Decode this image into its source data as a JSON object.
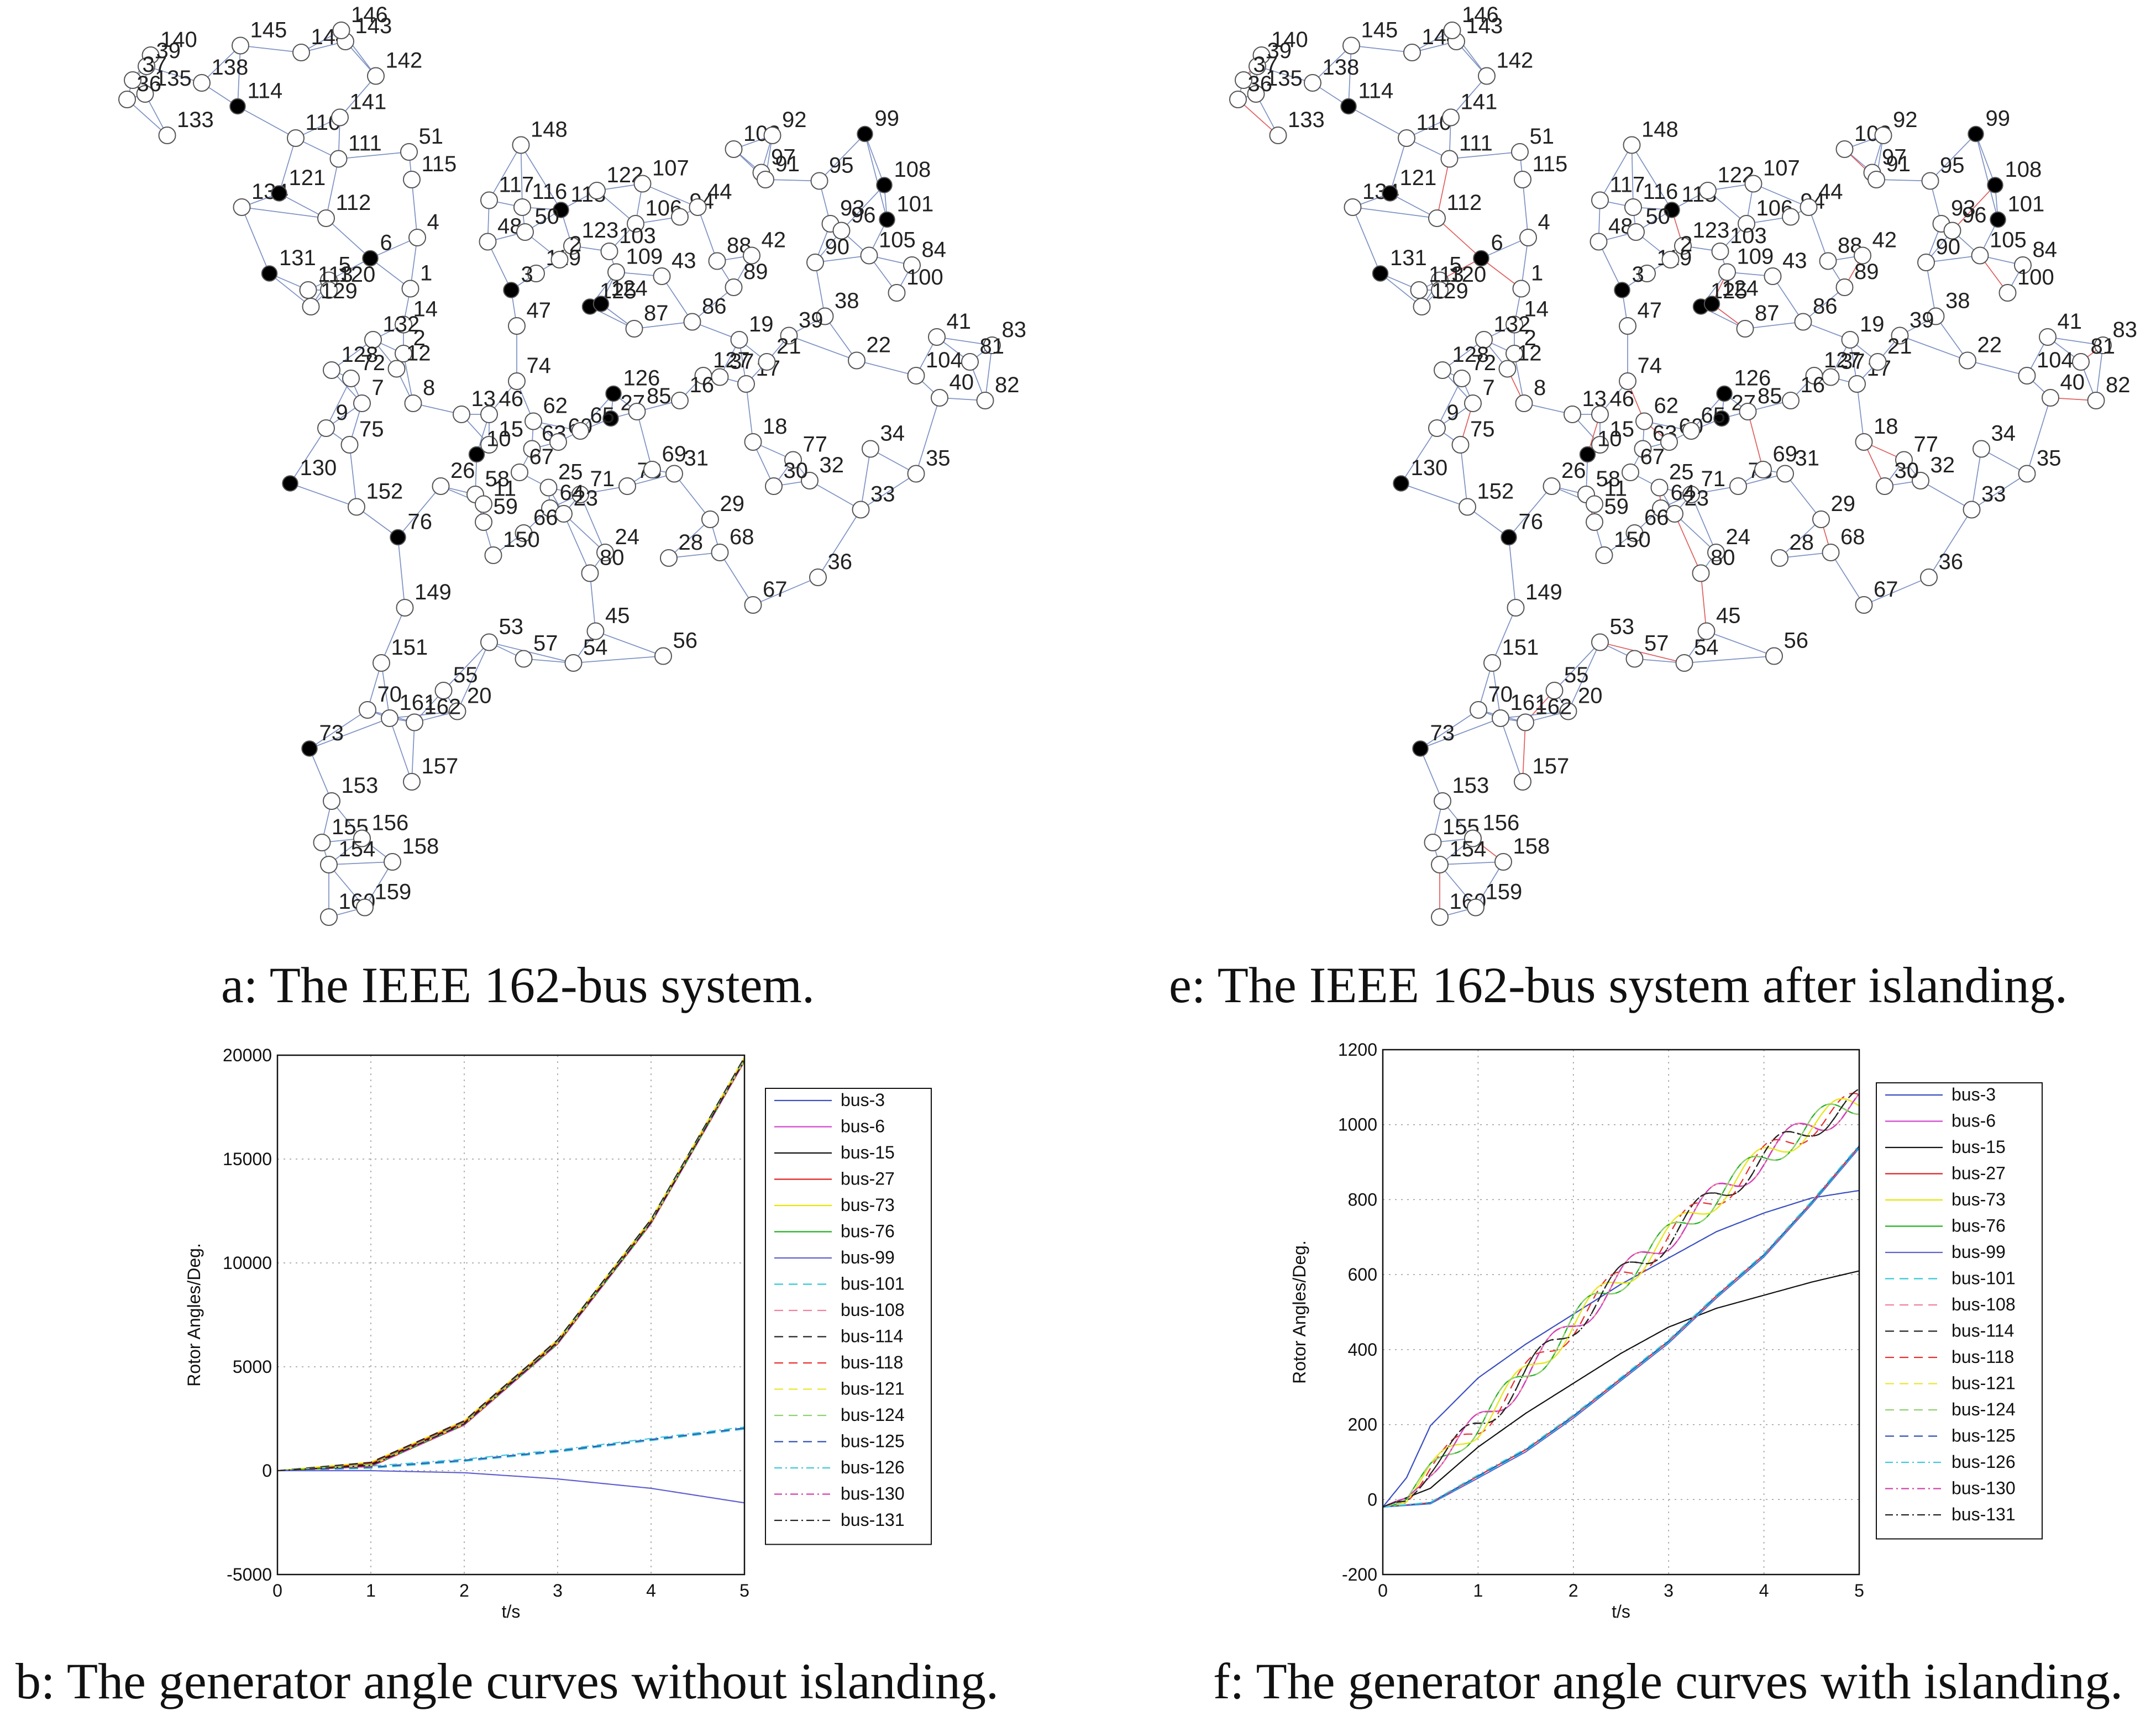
{
  "captions": {
    "a": "a: The IEEE 162-bus system.",
    "e": "e: The IEEE 162-bus system after islanding.",
    "b": "b: The generator angle curves without islanding.",
    "f": "f: The generator angle curves with islanding."
  },
  "network": {
    "nodes": [
      [
        "140",
        109,
        40
      ],
      [
        "39",
        106,
        48
      ],
      [
        "37",
        96,
        58
      ],
      [
        "135",
        105,
        68
      ],
      [
        "36",
        92,
        72
      ],
      [
        "138",
        146,
        60
      ],
      [
        "145",
        174,
        33
      ],
      [
        "144",
        218,
        38
      ],
      [
        "143",
        250,
        30
      ],
      [
        "146",
        247,
        22
      ],
      [
        "142",
        272,
        55
      ],
      [
        "114",
        172,
        77
      ],
      [
        "133",
        121,
        98
      ],
      [
        "110",
        214,
        100
      ],
      [
        "141",
        246,
        85
      ],
      [
        "111",
        245,
        115
      ],
      [
        "51",
        296,
        110
      ],
      [
        "148",
        377,
        105
      ],
      [
        "115",
        298,
        130
      ],
      [
        "134",
        175,
        150
      ],
      [
        "121",
        202,
        140
      ],
      [
        "112",
        236,
        158
      ],
      [
        "117",
        354,
        145
      ],
      [
        "116",
        378,
        150
      ],
      [
        "118",
        406,
        152
      ],
      [
        "122",
        432,
        138
      ],
      [
        "107",
        465,
        133
      ],
      [
        "102",
        531,
        108
      ],
      [
        "92",
        559,
        98
      ],
      [
        "99",
        626,
        97
      ],
      [
        "97",
        551,
        125
      ],
      [
        "91",
        554,
        130
      ],
      [
        "95",
        593,
        131
      ],
      [
        "108",
        640,
        134
      ],
      [
        "101",
        642,
        159
      ],
      [
        "4",
        302,
        172
      ],
      [
        "48",
        353,
        175
      ],
      [
        "50",
        380,
        168
      ],
      [
        "123",
        414,
        178
      ],
      [
        "106",
        460,
        162
      ],
      [
        "94",
        492,
        157
      ],
      [
        "44",
        505,
        150
      ],
      [
        "93",
        601,
        162
      ],
      [
        "96",
        609,
        167
      ],
      [
        "84",
        660,
        192
      ],
      [
        "6",
        268,
        187
      ],
      [
        "131",
        195,
        198
      ],
      [
        "1",
        297,
        209
      ],
      [
        "119",
        388,
        198
      ],
      [
        "2",
        405,
        188
      ],
      [
        "103",
        441,
        182
      ],
      [
        "109",
        446,
        197
      ],
      [
        "43",
        479,
        200
      ],
      [
        "88",
        519,
        189
      ],
      [
        "42",
        544,
        185
      ],
      [
        "90",
        590,
        190
      ],
      [
        "105",
        629,
        185
      ],
      [
        "5",
        238,
        203
      ],
      [
        "113",
        223,
        210
      ],
      [
        "120",
        238,
        210
      ],
      [
        "129",
        225,
        222
      ],
      [
        "3",
        370,
        210
      ],
      [
        "125",
        427,
        222
      ],
      [
        "124",
        435,
        220
      ],
      [
        "89",
        531,
        208
      ],
      [
        "38",
        597,
        229
      ],
      [
        "100",
        649,
        212
      ],
      [
        "14",
        292,
        235
      ],
      [
        "47",
        374,
        236
      ],
      [
        "87",
        459,
        238
      ],
      [
        "86",
        501,
        233
      ],
      [
        "19",
        535,
        246
      ],
      [
        "39",
        571,
        243
      ],
      [
        "22",
        620,
        261
      ],
      [
        "41",
        678,
        244
      ],
      [
        "83",
        718,
        250
      ],
      [
        "104",
        663,
        272
      ],
      [
        "81",
        702,
        262
      ],
      [
        "82",
        713,
        290
      ],
      [
        "132",
        270,
        246
      ],
      [
        "2",
        292,
        256
      ],
      [
        "12",
        287,
        267
      ],
      [
        "72",
        254,
        274
      ],
      [
        "128",
        240,
        268
      ],
      [
        "74",
        374,
        276
      ],
      [
        "126",
        444,
        285
      ],
      [
        "127",
        509,
        272
      ],
      [
        "37",
        521,
        273
      ],
      [
        "17",
        540,
        278
      ],
      [
        "21",
        555,
        262
      ],
      [
        "7",
        262,
        292
      ],
      [
        "8",
        299,
        292
      ],
      [
        "13",
        334,
        300
      ],
      [
        "18",
        545,
        320
      ],
      [
        "40",
        680,
        288
      ],
      [
        "27",
        442,
        303
      ],
      [
        "16",
        492,
        290
      ],
      [
        "9",
        236,
        310
      ],
      [
        "75",
        253,
        322
      ],
      [
        "46",
        354,
        300
      ],
      [
        "15",
        354,
        322
      ],
      [
        "10",
        345,
        329
      ],
      [
        "62",
        386,
        305
      ],
      [
        "63",
        385,
        325
      ],
      [
        "60",
        404,
        320
      ],
      [
        "85",
        461,
        298
      ],
      [
        "34",
        630,
        325
      ],
      [
        "35",
        663,
        343
      ],
      [
        "130",
        210,
        350
      ],
      [
        "152",
        258,
        367
      ],
      [
        "26",
        319,
        352
      ],
      [
        "58",
        344,
        358
      ],
      [
        "67",
        376,
        342
      ],
      [
        "65",
        420,
        312
      ],
      [
        "25",
        397,
        353
      ],
      [
        "71",
        420,
        358
      ],
      [
        "78",
        454,
        352
      ],
      [
        "69",
        472,
        340
      ],
      [
        "31",
        488,
        343
      ],
      [
        "77",
        574,
        333
      ],
      [
        "32",
        586,
        348
      ],
      [
        "30",
        560,
        352
      ],
      [
        "33",
        623,
        369
      ],
      [
        "76",
        288,
        389
      ],
      [
        "11",
        350,
        365
      ],
      [
        "59",
        350,
        378
      ],
      [
        "64",
        398,
        368
      ],
      [
        "23",
        408,
        372
      ],
      [
        "66",
        379,
        386
      ],
      [
        "29",
        514,
        376
      ],
      [
        "150",
        357,
        402
      ],
      [
        "24",
        438,
        400
      ],
      [
        "28",
        484,
        404
      ],
      [
        "68",
        521,
        400
      ],
      [
        "36",
        592,
        418
      ],
      [
        "80",
        427,
        415
      ],
      [
        "149",
        293,
        440
      ],
      [
        "45",
        431,
        457
      ],
      [
        "67",
        545,
        438
      ],
      [
        "53",
        354,
        465
      ],
      [
        "57",
        379,
        477
      ],
      [
        "54",
        415,
        480
      ],
      [
        "56",
        480,
        475
      ],
      [
        "151",
        276,
        480
      ],
      [
        "55",
        321,
        500
      ],
      [
        "20",
        331,
        515
      ],
      [
        "70",
        266,
        514
      ],
      [
        "161",
        282,
        520
      ],
      [
        "162",
        300,
        523
      ],
      [
        "73",
        224,
        542
      ],
      [
        "157",
        298,
        566
      ],
      [
        "153",
        240,
        580
      ],
      [
        "155",
        233,
        610
      ],
      [
        "156",
        262,
        607
      ],
      [
        "154",
        238,
        626
      ],
      [
        "158",
        284,
        624
      ],
      [
        "160",
        238,
        664
      ],
      [
        "159",
        264,
        657
      ]
    ],
    "generators": [
      114,
      121,
      131,
      6,
      3,
      118,
      125,
      124,
      99,
      108,
      101,
      126,
      27,
      10,
      130,
      76,
      73
    ]
  },
  "chart_b": {
    "type": "line",
    "xlabel": "t/s",
    "ylabel": "Rotor Angles/Deg.",
    "xlim": [
      0,
      5
    ],
    "ylim": [
      -5000,
      20000
    ],
    "xticks": [
      "0",
      "1",
      "2",
      "3",
      "4",
      "5"
    ],
    "yticks": [
      "-5000",
      "0",
      "5000",
      "10000",
      "15000",
      "20000"
    ],
    "grid": true,
    "legend_position": "right",
    "series": [
      {
        "name": "bus-3",
        "group": "top"
      },
      {
        "name": "bus-6",
        "group": "top"
      },
      {
        "name": "bus-15",
        "group": "top"
      },
      {
        "name": "bus-27",
        "group": "top"
      },
      {
        "name": "bus-73",
        "group": "top"
      },
      {
        "name": "bus-76",
        "group": "top"
      },
      {
        "name": "bus-99",
        "group": "bottom"
      },
      {
        "name": "bus-101",
        "group": "mid"
      },
      {
        "name": "bus-108",
        "group": "mid"
      },
      {
        "name": "bus-114",
        "group": "top"
      },
      {
        "name": "bus-118",
        "group": "top"
      },
      {
        "name": "bus-121",
        "group": "top"
      },
      {
        "name": "bus-124",
        "group": "top"
      },
      {
        "name": "bus-125",
        "group": "mid"
      },
      {
        "name": "bus-126",
        "group": "mid"
      },
      {
        "name": "bus-130",
        "group": "top"
      },
      {
        "name": "bus-131",
        "group": "top"
      }
    ],
    "group_curves": {
      "top": {
        "x": [
          0,
          1,
          2,
          3,
          4,
          5
        ],
        "y": [
          0,
          300,
          2300,
          6200,
          12000,
          19800
        ]
      },
      "mid": {
        "x": [
          0,
          1,
          2,
          3,
          4,
          5
        ],
        "y": [
          0,
          120,
          450,
          900,
          1450,
          2000
        ]
      },
      "bottom": {
        "x": [
          0,
          1,
          2,
          3,
          4,
          5
        ],
        "y": [
          0,
          50,
          -50,
          -350,
          -800,
          -1500
        ]
      }
    }
  },
  "chart_f": {
    "type": "line",
    "xlabel": "t/s",
    "ylabel": "Rotor Angles/Deg.",
    "xlim": [
      0,
      5
    ],
    "ylim": [
      -200,
      1200
    ],
    "xticks": [
      "0",
      "1",
      "2",
      "3",
      "4",
      "5"
    ],
    "yticks": [
      "-200",
      "0",
      "200",
      "400",
      "600",
      "800",
      "1000",
      "1200"
    ],
    "grid": true,
    "legend_position": "right",
    "series": [
      {
        "name": "bus-3",
        "group": "blue"
      },
      {
        "name": "bus-6",
        "group": "osc"
      },
      {
        "name": "bus-15",
        "group": "black"
      },
      {
        "name": "bus-27",
        "group": "rise"
      },
      {
        "name": "bus-73",
        "group": "osc"
      },
      {
        "name": "bus-76",
        "group": "osc"
      },
      {
        "name": "bus-99",
        "group": "rise"
      },
      {
        "name": "bus-101",
        "group": "rise"
      },
      {
        "name": "bus-108",
        "group": "osc"
      },
      {
        "name": "bus-114",
        "group": "osc"
      },
      {
        "name": "bus-118",
        "group": "osc"
      },
      {
        "name": "bus-121",
        "group": "osc"
      },
      {
        "name": "bus-124",
        "group": "osc"
      },
      {
        "name": "bus-125",
        "group": "rise"
      },
      {
        "name": "bus-126",
        "group": "rise"
      },
      {
        "name": "bus-130",
        "group": "osc"
      },
      {
        "name": "bus-131",
        "group": "osc"
      }
    ],
    "group_curves": {
      "blue": {
        "x": [
          0,
          0.25,
          0.5,
          1,
          1.5,
          2,
          2.5,
          3,
          3.5,
          4,
          4.5,
          5
        ],
        "y": [
          -20,
          60,
          200,
          330,
          420,
          500,
          580,
          650,
          720,
          770,
          810,
          830
        ]
      },
      "osc": {
        "x": [
          0,
          0.25,
          0.5,
          1,
          1.5,
          2,
          2.5,
          3,
          3.5,
          4,
          4.5,
          5
        ],
        "y": [
          -20,
          0,
          80,
          200,
          330,
          470,
          590,
          700,
          810,
          910,
          1000,
          1060
        ]
      },
      "black": {
        "x": [
          0,
          0.5,
          1,
          1.5,
          2,
          2.5,
          3,
          3.5,
          4,
          4.5,
          5
        ],
        "y": [
          -20,
          30,
          140,
          230,
          310,
          390,
          460,
          510,
          545,
          580,
          610
        ]
      },
      "rise": {
        "x": [
          0,
          0.5,
          1,
          1.5,
          2,
          2.5,
          3,
          3.5,
          4,
          4.5,
          5
        ],
        "y": [
          -20,
          -10,
          60,
          130,
          220,
          320,
          420,
          540,
          650,
          790,
          940
        ]
      }
    }
  },
  "colors": {
    "bus-3": "#3a4fc0",
    "bus-6": "#d048d0",
    "bus-15": "#111111",
    "bus-27": "#e02020",
    "bus-73": "#e6e600",
    "bus-76": "#20b020",
    "bus-99": "#6060d0",
    "bus-101": "#30c8d8",
    "bus-108": "#f080a0",
    "bus-114": "#222222",
    "bus-118": "#e83030",
    "bus-121": "#e8e830",
    "bus-124": "#90d070",
    "bus-125": "#3050b0",
    "bus-126": "#40c8e0",
    "bus-130": "#d040b0",
    "bus-131": "#222222"
  }
}
